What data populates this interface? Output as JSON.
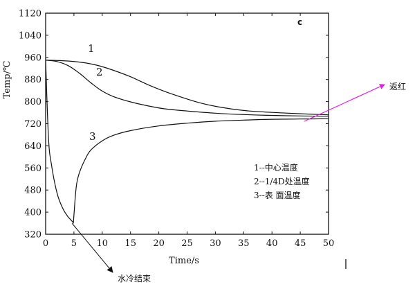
{
  "chart_data": {
    "type": "line",
    "panel_label": "c",
    "xlabel": "Time/s",
    "ylabel": "Temp/℃",
    "xlim": [
      0,
      50
    ],
    "ylim": [
      320,
      1120
    ],
    "x_ticks": [
      0,
      5,
      10,
      15,
      20,
      25,
      30,
      35,
      40,
      45,
      50
    ],
    "y_ticks": [
      320,
      400,
      480,
      560,
      640,
      720,
      800,
      880,
      960,
      1040,
      1120
    ],
    "grid": false,
    "series": [
      {
        "label": "1",
        "x": [
          0,
          3,
          6,
          9,
          12,
          15,
          18,
          21,
          24,
          27,
          30,
          33,
          36,
          40,
          45,
          50
        ],
        "y": [
          950,
          948,
          943,
          932,
          913,
          890,
          862,
          837,
          816,
          797,
          783,
          773,
          766,
          761,
          756,
          752
        ]
      },
      {
        "label": "2",
        "x": [
          0,
          2,
          4,
          6,
          8,
          10,
          12,
          15,
          18,
          21,
          25,
          30,
          35,
          40,
          45,
          50
        ],
        "y": [
          950,
          945,
          930,
          902,
          868,
          838,
          818,
          799,
          785,
          774,
          766,
          758,
          753,
          750,
          748,
          747
        ]
      },
      {
        "label": "3",
        "x": [
          0,
          0.5,
          1,
          2,
          3,
          4,
          4.9,
          5.2,
          5.5,
          6,
          7,
          8,
          10,
          12,
          15,
          20,
          25,
          30,
          35,
          40,
          45,
          50
        ],
        "y": [
          950,
          670,
          575,
          470,
          415,
          382,
          362,
          445,
          505,
          545,
          592,
          625,
          658,
          678,
          695,
          712,
          722,
          729,
          733,
          736,
          737,
          738
        ]
      }
    ],
    "legend": {
      "placement": "right-middle",
      "entries": [
        "1--中心温度",
        "2--1/4D处温度",
        "3--表 面温度"
      ]
    },
    "annotations": [
      {
        "text": "返红",
        "target": "recalescence at the surface curve near t=45 s"
      },
      {
        "text": "水冷结束",
        "target": "end of water cooling at t≈5 s"
      }
    ]
  }
}
